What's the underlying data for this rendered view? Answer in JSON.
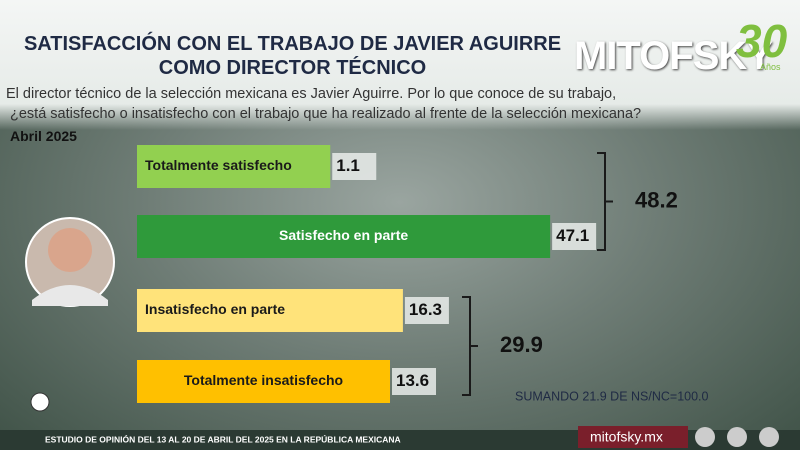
{
  "chart_data": {
    "type": "bar",
    "title": [
      "SATISFACCIÓN CON EL TRABAJO DE JAVIER AGUIRRE",
      "COMO DIRECTOR TÉCNICO"
    ],
    "question": [
      "El director técnico de la selección mexicana es Javier Aguirre. Por lo que conoce de su trabajo,",
      "¿está satisfecho o insatisfecho con el trabajo que ha realizado al frente de la selección mexicana?"
    ],
    "date": "Abril 2025",
    "categories": [
      "Totalmente satisfecho",
      "Satisfecho en parte",
      "Insatisfecho en parte",
      "Totalmente insatisfecho"
    ],
    "values": [
      1.1,
      47.1,
      16.3,
      13.6
    ],
    "colors": [
      "#92d050",
      "#2f9a3b",
      "#ffe37a",
      "#ffc000"
    ],
    "group_totals": [
      48.2,
      29.9
    ],
    "note": "SUMANDO 21.9 DE NS/NC=100.0",
    "footer": "ESTUDIO DE OPINIÓN DEL 13 AL 20 DE ABRIL DEL 2025 EN LA REPÚBLICA MEXICANA",
    "logo": "MITOFSKY",
    "logo_years": "30",
    "logo_sub": "Años",
    "website": "mitofsky.mx"
  }
}
